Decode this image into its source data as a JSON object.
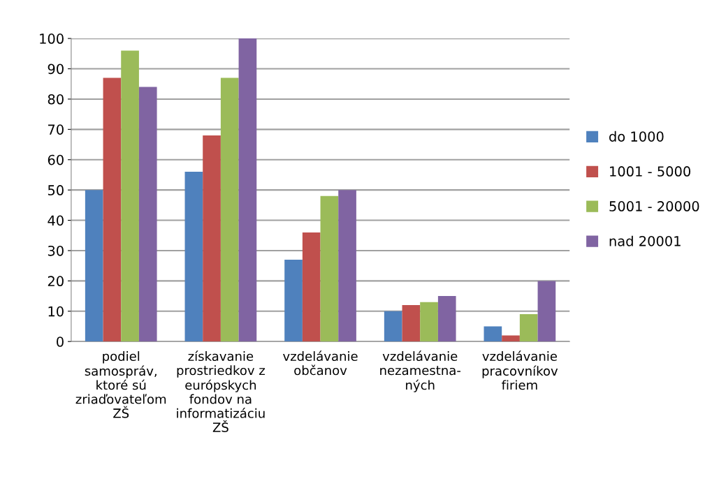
{
  "chart_data": {
    "type": "bar",
    "categories": [
      "podiel\nsamospráv,\nktoré sú\nzriaďovateľom\nZŠ",
      "získavanie\nprostriedkov z\neurópskych\nfondov na\ninformatizáciu\nZŠ",
      "vzdelávanie\nobčanov",
      "vzdelávanie\nnezamestna-\nných",
      "vzdelávanie\npracovníkov\nfiriem"
    ],
    "series": [
      {
        "name": "do 1000",
        "color": "#4f81bd",
        "values": [
          50,
          56,
          27,
          10,
          5
        ]
      },
      {
        "name": "1001 - 5000",
        "color": "#c0504d",
        "values": [
          87,
          68,
          36,
          12,
          2
        ]
      },
      {
        "name": "5001 - 20000",
        "color": "#9bbb59",
        "values": [
          96,
          87,
          48,
          13,
          9
        ]
      },
      {
        "name": "nad 20001",
        "color": "#8064a2",
        "values": [
          84,
          100,
          50,
          15,
          20
        ]
      }
    ],
    "ylim": [
      0,
      100
    ],
    "yticks": [
      0,
      10,
      20,
      30,
      40,
      50,
      60,
      70,
      80,
      90,
      100
    ],
    "grid": "y",
    "legend": "right"
  }
}
